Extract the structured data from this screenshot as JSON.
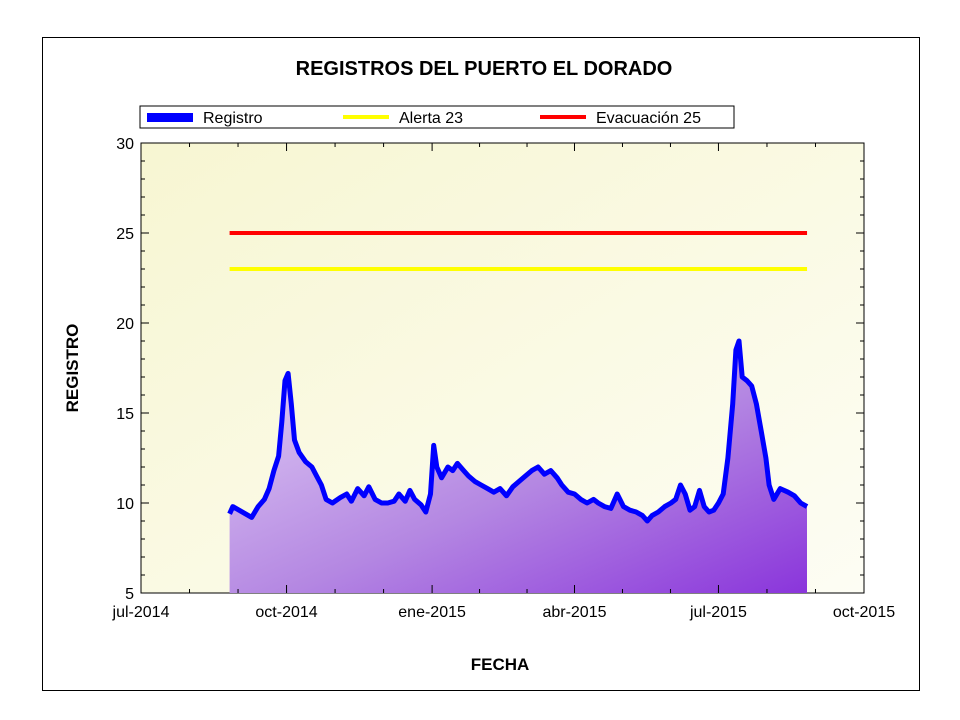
{
  "chart_data": {
    "type": "area",
    "title": "REGISTROS DEL PUERTO EL DORADO",
    "xlabel": "FECHA",
    "ylabel": "REGISTRO",
    "x_ticks": [
      "jul-2014",
      "oct-2014",
      "ene-2015",
      "abr-2015",
      "jul-2015",
      "oct-2015"
    ],
    "x_tick_dates": [
      "2014-07-01",
      "2014-10-01",
      "2015-01-01",
      "2015-04-01",
      "2015-07-01",
      "2015-10-01"
    ],
    "xlim": [
      "2014-07-01",
      "2015-10-01"
    ],
    "y_ticks": [
      5,
      10,
      15,
      20,
      25,
      30
    ],
    "ylim": [
      5,
      30
    ],
    "grid": false,
    "legend_position": "top",
    "series": [
      {
        "name": "Registro",
        "color": "#0000ff",
        "fill": "gradient-purple",
        "points": [
          [
            "2014-08-26",
            9.4
          ],
          [
            "2014-08-28",
            9.8
          ],
          [
            "2014-09-01",
            9.6
          ],
          [
            "2014-09-05",
            9.4
          ],
          [
            "2014-09-09",
            9.2
          ],
          [
            "2014-09-13",
            9.8
          ],
          [
            "2014-09-17",
            10.2
          ],
          [
            "2014-09-20",
            10.8
          ],
          [
            "2014-09-23",
            11.8
          ],
          [
            "2014-09-26",
            12.6
          ],
          [
            "2014-09-28",
            14.5
          ],
          [
            "2014-09-30",
            16.8
          ],
          [
            "2014-10-02",
            17.2
          ],
          [
            "2014-10-04",
            15.5
          ],
          [
            "2014-10-06",
            13.5
          ],
          [
            "2014-10-09",
            12.8
          ],
          [
            "2014-10-13",
            12.3
          ],
          [
            "2014-10-17",
            12.0
          ],
          [
            "2014-10-20",
            11.5
          ],
          [
            "2014-10-23",
            11.0
          ],
          [
            "2014-10-26",
            10.2
          ],
          [
            "2014-10-30",
            10.0
          ],
          [
            "2014-11-04",
            10.3
          ],
          [
            "2014-11-08",
            10.5
          ],
          [
            "2014-11-11",
            10.1
          ],
          [
            "2014-11-15",
            10.8
          ],
          [
            "2014-11-19",
            10.4
          ],
          [
            "2014-11-22",
            10.9
          ],
          [
            "2014-11-26",
            10.2
          ],
          [
            "2014-11-30",
            10.0
          ],
          [
            "2014-12-04",
            10.0
          ],
          [
            "2014-12-08",
            10.1
          ],
          [
            "2014-12-11",
            10.5
          ],
          [
            "2014-12-15",
            10.1
          ],
          [
            "2014-12-18",
            10.7
          ],
          [
            "2014-12-21",
            10.2
          ],
          [
            "2014-12-25",
            9.9
          ],
          [
            "2014-12-28",
            9.5
          ],
          [
            "2014-12-31",
            10.5
          ],
          [
            "2015-01-02",
            13.2
          ],
          [
            "2015-01-04",
            12.0
          ],
          [
            "2015-01-07",
            11.4
          ],
          [
            "2015-01-11",
            12.0
          ],
          [
            "2015-01-14",
            11.8
          ],
          [
            "2015-01-17",
            12.2
          ],
          [
            "2015-01-21",
            11.8
          ],
          [
            "2015-01-24",
            11.5
          ],
          [
            "2015-01-28",
            11.2
          ],
          [
            "2015-02-01",
            11.0
          ],
          [
            "2015-02-05",
            10.8
          ],
          [
            "2015-02-09",
            10.6
          ],
          [
            "2015-02-13",
            10.8
          ],
          [
            "2015-02-17",
            10.4
          ],
          [
            "2015-02-21",
            10.9
          ],
          [
            "2015-02-25",
            11.2
          ],
          [
            "2015-03-01",
            11.5
          ],
          [
            "2015-03-05",
            11.8
          ],
          [
            "2015-03-09",
            12.0
          ],
          [
            "2015-03-13",
            11.6
          ],
          [
            "2015-03-17",
            11.8
          ],
          [
            "2015-03-21",
            11.4
          ],
          [
            "2015-03-24",
            11.0
          ],
          [
            "2015-03-28",
            10.6
          ],
          [
            "2015-04-01",
            10.5
          ],
          [
            "2015-04-05",
            10.2
          ],
          [
            "2015-04-09",
            10.0
          ],
          [
            "2015-04-13",
            10.2
          ],
          [
            "2015-04-16",
            10.0
          ],
          [
            "2015-04-20",
            9.8
          ],
          [
            "2015-04-24",
            9.7
          ],
          [
            "2015-04-28",
            10.5
          ],
          [
            "2015-05-02",
            9.8
          ],
          [
            "2015-05-06",
            9.6
          ],
          [
            "2015-05-10",
            9.5
          ],
          [
            "2015-05-14",
            9.3
          ],
          [
            "2015-05-17",
            9.0
          ],
          [
            "2015-05-20",
            9.3
          ],
          [
            "2015-05-24",
            9.5
          ],
          [
            "2015-05-28",
            9.8
          ],
          [
            "2015-06-01",
            10.0
          ],
          [
            "2015-06-04",
            10.2
          ],
          [
            "2015-06-07",
            11.0
          ],
          [
            "2015-06-10",
            10.5
          ],
          [
            "2015-06-13",
            9.6
          ],
          [
            "2015-06-16",
            9.8
          ],
          [
            "2015-06-19",
            10.7
          ],
          [
            "2015-06-22",
            9.8
          ],
          [
            "2015-06-25",
            9.5
          ],
          [
            "2015-06-28",
            9.6
          ],
          [
            "2015-07-01",
            10.0
          ],
          [
            "2015-07-04",
            10.5
          ],
          [
            "2015-07-07",
            12.5
          ],
          [
            "2015-07-10",
            15.5
          ],
          [
            "2015-07-12",
            18.5
          ],
          [
            "2015-07-14",
            19.0
          ],
          [
            "2015-07-16",
            17.0
          ],
          [
            "2015-07-19",
            16.8
          ],
          [
            "2015-07-22",
            16.5
          ],
          [
            "2015-07-25",
            15.5
          ],
          [
            "2015-07-28",
            14.0
          ],
          [
            "2015-07-31",
            12.5
          ],
          [
            "2015-08-02",
            11.0
          ],
          [
            "2015-08-05",
            10.2
          ],
          [
            "2015-08-09",
            10.8
          ],
          [
            "2015-08-14",
            10.6
          ],
          [
            "2015-08-18",
            10.4
          ],
          [
            "2015-08-22",
            10.0
          ],
          [
            "2015-08-26",
            9.8
          ]
        ]
      },
      {
        "name": "Alerta 23",
        "color": "#ffff00",
        "value": 23,
        "x_range": [
          "2014-08-26",
          "2015-08-26"
        ]
      },
      {
        "name": "Evacuación 25",
        "color": "#ff0000",
        "value": 25,
        "x_range": [
          "2014-08-26",
          "2015-08-26"
        ]
      }
    ]
  }
}
